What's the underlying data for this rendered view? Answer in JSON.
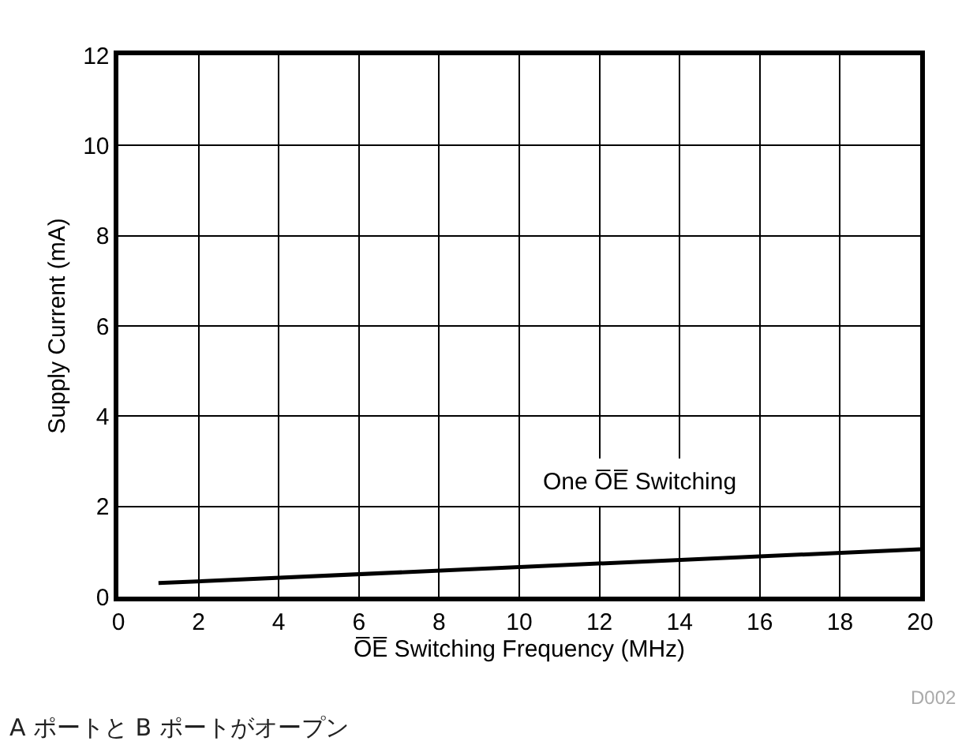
{
  "chart_data": {
    "type": "line",
    "x": [
      1,
      20
    ],
    "series": [
      {
        "name": "One O̅E̅ Switching",
        "color": "#000000",
        "values": [
          0.3,
          1.05
        ]
      }
    ],
    "xlabel": "O̅E̅ Switching Frequency (MHz)",
    "ylabel": "Supply Current (mA)",
    "xlim": [
      0,
      20
    ],
    "xticks": [
      0,
      2,
      4,
      6,
      8,
      10,
      12,
      14,
      16,
      18,
      20
    ],
    "ylim": [
      0,
      12
    ],
    "yticks": [
      0,
      2,
      4,
      6,
      8,
      10,
      12
    ],
    "grid": true,
    "legend": false,
    "marker": "none",
    "line_style": "solid",
    "annotations": [
      "D002",
      "A ポートと B ポートがオープン"
    ]
  }
}
